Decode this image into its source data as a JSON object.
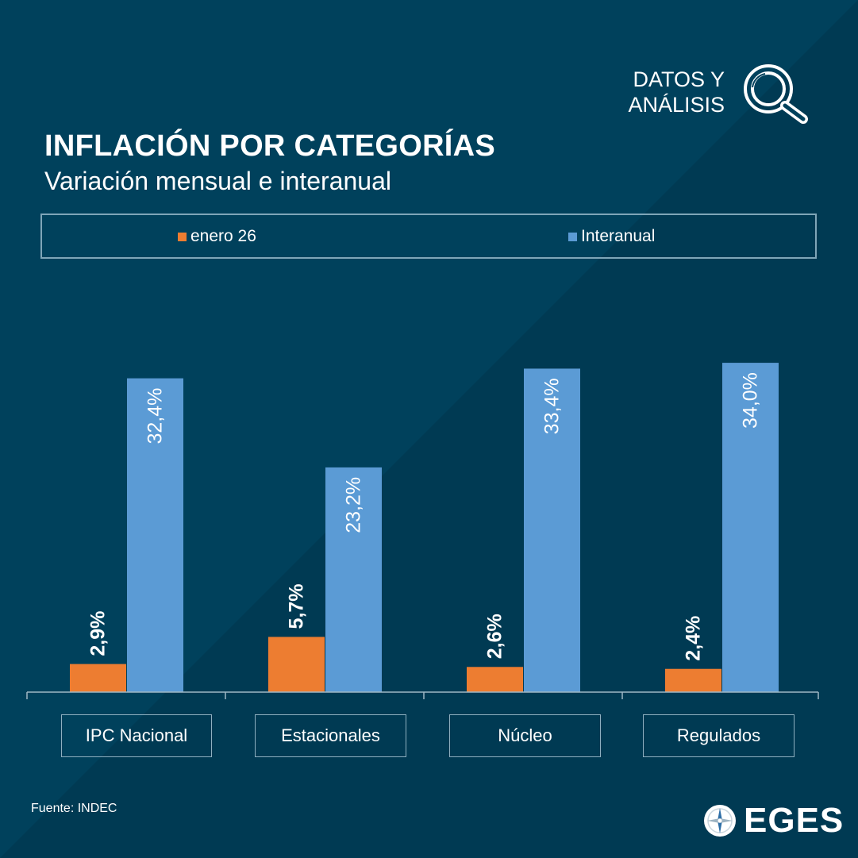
{
  "header": {
    "brand_tag_line1": "DATOS Y",
    "brand_tag_line2": "ANÁLISIS",
    "title": "INFLACIÓN POR CATEGORÍAS",
    "subtitle": "Variación mensual e interanual"
  },
  "colors": {
    "background": "#00415c",
    "background_diagonal": "#003a53",
    "monthly": "#ed7d31",
    "yearly": "#5b9bd5",
    "axis": "#9fb7c4"
  },
  "chart_data": {
    "type": "bar",
    "title": "INFLACIÓN POR CATEGORÍAS",
    "subtitle": "Variación mensual e interanual",
    "categories": [
      "IPC Nacional",
      "Estacionales",
      "Núcleo",
      "Regulados"
    ],
    "series": [
      {
        "name": "enero 26",
        "values": [
          2.9,
          5.7,
          2.6,
          2.4
        ],
        "labels": [
          "2,9%",
          "5,7%",
          "2,6%",
          "2,4%"
        ]
      },
      {
        "name": "Interanual",
        "values": [
          32.4,
          23.2,
          33.4,
          34.0
        ],
        "labels": [
          "32,4%",
          "23,2%",
          "33,4%",
          "34,0%"
        ]
      }
    ],
    "xlabel": "",
    "ylabel": "",
    "ylim": [
      0,
      34.5
    ],
    "grid": false,
    "legend": "top"
  },
  "footer": {
    "source": "Fuente: INDEC",
    "logo_text": "EGES",
    "logo_icon": "compass-icon"
  }
}
